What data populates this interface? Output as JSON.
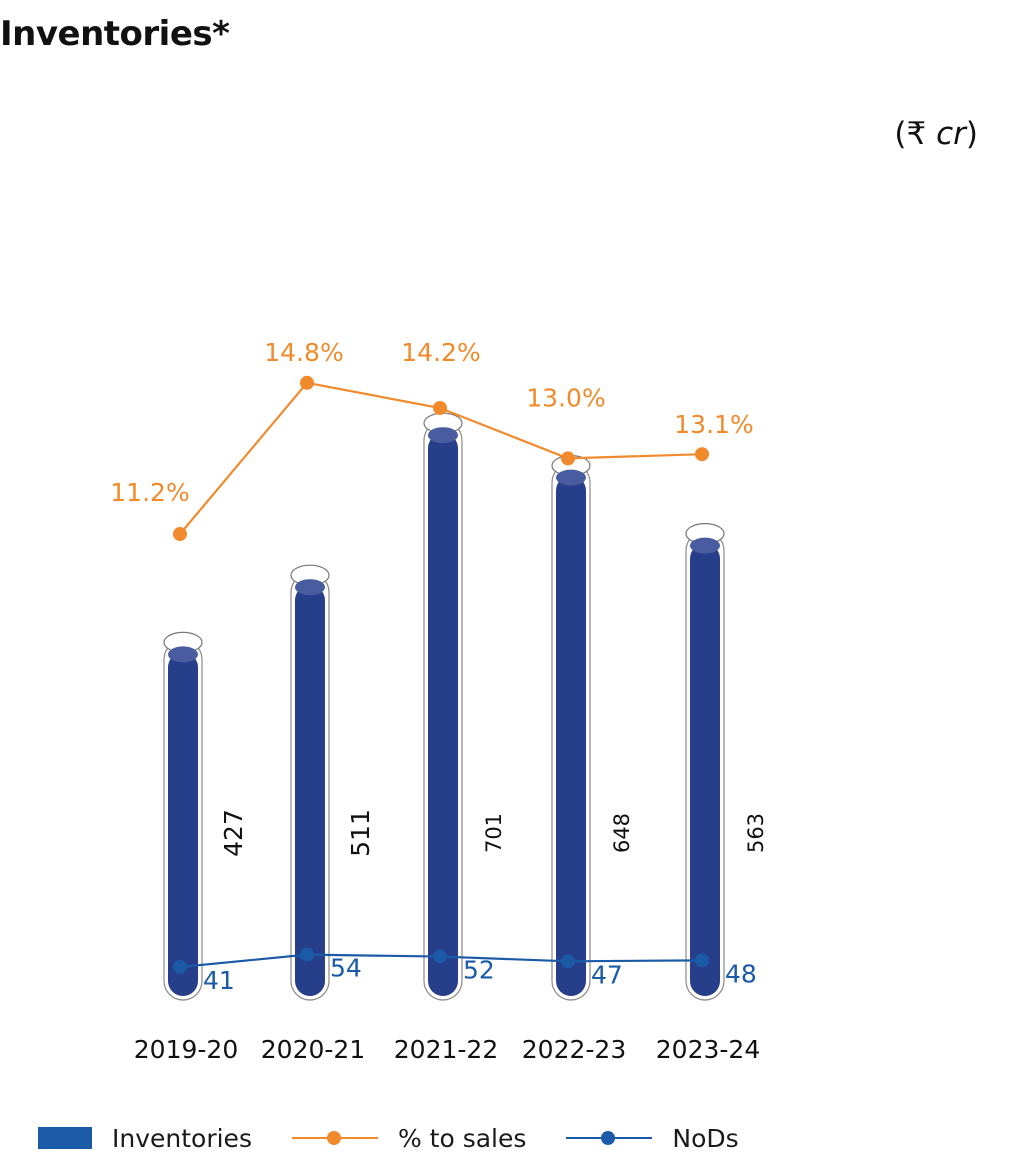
{
  "header": {
    "title": "Inventories*",
    "unit_prefix": "(₹ ",
    "unit_italic": "cr",
    "unit_suffix": ")"
  },
  "chart_data": {
    "type": "bar",
    "title": "Inventories*",
    "unit": "₹ cr",
    "categories": [
      "2019-20",
      "2020-21",
      "2021-22",
      "2022-23",
      "2023-24"
    ],
    "series": [
      {
        "name": "Inventories",
        "type": "bar",
        "values": [
          427,
          511,
          701,
          648,
          563
        ],
        "labels": [
          "427",
          "511",
          "701",
          "648",
          "563"
        ]
      },
      {
        "name": "% to sales",
        "type": "line",
        "values": [
          11.2,
          14.8,
          14.2,
          13.0,
          13.1
        ],
        "labels": [
          "11.2%",
          "14.8%",
          "14.2%",
          "13.0%",
          "13.1%"
        ]
      },
      {
        "name": "NoDs",
        "type": "line",
        "values": [
          41,
          54,
          52,
          47,
          48
        ],
        "labels": [
          "41",
          "54",
          "52",
          "47",
          "48"
        ]
      }
    ],
    "colors": {
      "bar": "#273f8a",
      "bar_top": "#4a5ca0",
      "pct": "#f08a2c",
      "nods": "#1b5aa6",
      "legend_bar": "#1b5aa6"
    },
    "legend": {
      "position": "bottom"
    },
    "grid": false
  }
}
